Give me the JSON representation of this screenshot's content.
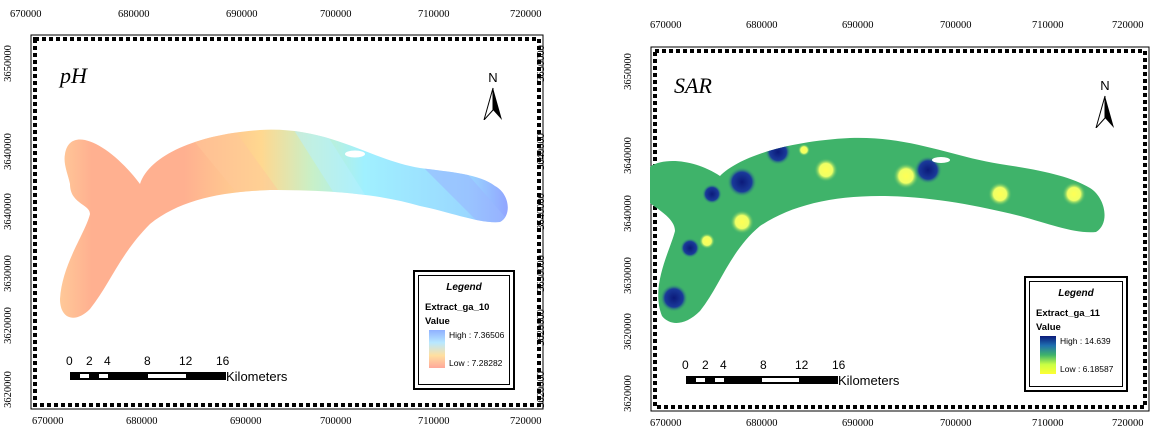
{
  "x_ticks": [
    "670000",
    "680000",
    "690000",
    "700000",
    "710000",
    "720000"
  ],
  "y_ticks": [
    "3650000",
    "3640000",
    "3640000",
    "3630000",
    "3620000",
    "3620000"
  ],
  "north_label": "N",
  "scale": {
    "numbers": [
      "0",
      "2",
      "4",
      "8",
      "12",
      "16"
    ],
    "unit": "Kilometers"
  },
  "maps": {
    "ph": {
      "title": "pH",
      "legend": {
        "title": "Legend",
        "layer": "Extract_ga_10",
        "value_label": "Value",
        "high": "High : 7.36506",
        "low": "Low : 7.28282",
        "colors": {
          "high": "#8fa8ff",
          "low": "#ffa89a"
        }
      }
    },
    "sar": {
      "title": "SAR",
      "legend": {
        "title": "Legend",
        "layer": "Extract_ga_11",
        "value_label": "Value",
        "high": "High : 14.639",
        "low": "Low : 6.18587",
        "colors": {
          "high": "#0b1a7a",
          "mid": "#3fb36a",
          "low": "#ffff33"
        }
      }
    }
  }
}
